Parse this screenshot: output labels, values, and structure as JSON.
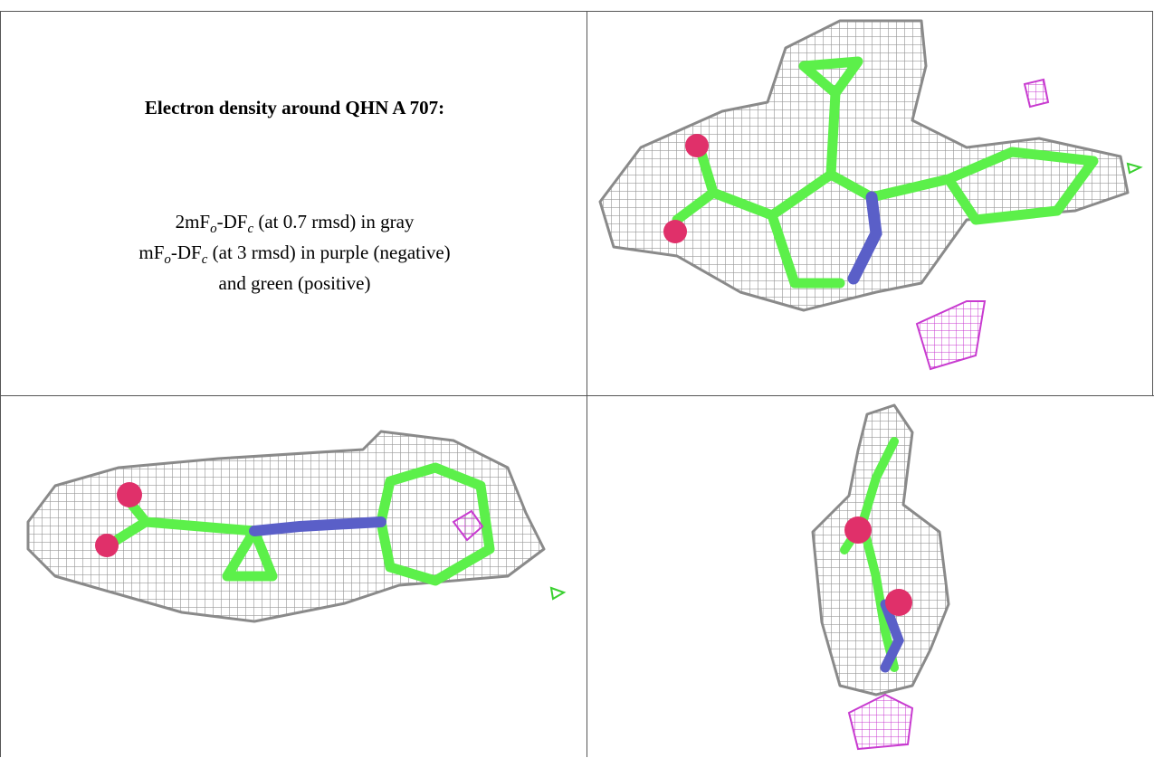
{
  "text_panel": {
    "title": "Electron density around QHN A 707:",
    "lines": [
      [
        "2mF",
        "o",
        "-DF",
        "c",
        " (at 0.7 rmsd) in gray"
      ],
      [
        "mF",
        "o",
        "-DF",
        "c",
        " (at 3 rmsd) in purple (negative)"
      ],
      [
        "and green (positive)"
      ]
    ]
  }
}
